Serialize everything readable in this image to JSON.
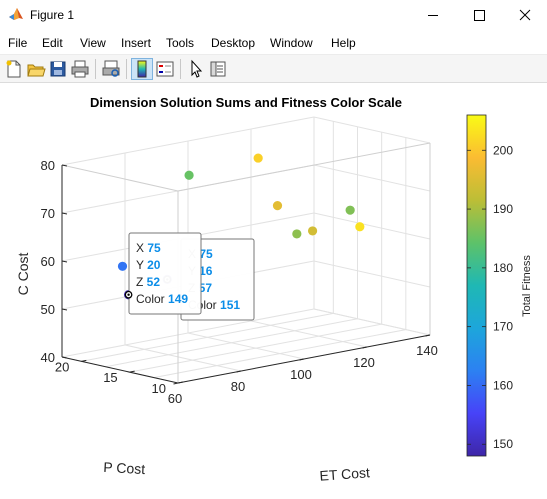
{
  "window": {
    "title": "Figure 1"
  },
  "menu": [
    "File",
    "Edit",
    "View",
    "Insert",
    "Tools",
    "Desktop",
    "Window",
    "Help"
  ],
  "toolbar": {
    "buttons": [
      "new-figure-icon",
      "open-file-icon",
      "save-icon",
      "print-icon",
      "print-preview-icon",
      "colorbar-icon",
      "legend-icon",
      "pointer-icon",
      "property-inspector-icon"
    ],
    "pressed": "colorbar-icon"
  },
  "chart_data": {
    "type": "scatter",
    "dimensions": 3,
    "title": "Dimension Solution Sums and Fitness Color Scale",
    "xlabel": "ET Cost",
    "ylabel": "P Cost",
    "zlabel": "C Cost",
    "xlim": [
      60,
      140
    ],
    "ylim": [
      10,
      22
    ],
    "zlim": [
      40,
      80
    ],
    "xticks": [
      60,
      80,
      100,
      120,
      140
    ],
    "yticks": [
      10,
      15,
      20
    ],
    "zticks": [
      40,
      50,
      60,
      70,
      80
    ],
    "grid": true,
    "colorbar": {
      "label": "Total Fitness",
      "range": [
        148,
        206
      ],
      "ticks": [
        150,
        160,
        170,
        180,
        190,
        200
      ],
      "colormap": "parula"
    },
    "points": [
      {
        "x": 75,
        "y": 20,
        "z": 52,
        "color": 149
      },
      {
        "x": 75,
        "y": 16,
        "z": 57,
        "color": 151
      },
      {
        "x": 70,
        "y": 19,
        "z": 59,
        "color": 161
      },
      {
        "x": 80,
        "y": 15,
        "z": 54,
        "color": 158
      },
      {
        "x": 85,
        "y": 17,
        "z": 77,
        "color": 185
      },
      {
        "x": 110,
        "y": 18,
        "z": 77,
        "color": 201
      },
      {
        "x": 110,
        "y": 16,
        "z": 68,
        "color": 196
      },
      {
        "x": 110,
        "y": 14,
        "z": 63,
        "color": 188
      },
      {
        "x": 115,
        "y": 14,
        "z": 63,
        "color": 194
      },
      {
        "x": 130,
        "y": 15,
        "z": 65,
        "color": 187
      },
      {
        "x": 130,
        "y": 14,
        "z": 62,
        "color": 203
      }
    ],
    "datatips": [
      {
        "rows": [
          {
            "label": "X",
            "value": "75"
          },
          {
            "label": "Y",
            "value": "16"
          },
          {
            "label": "Z",
            "value": "57"
          },
          {
            "label": "Color",
            "value": "151"
          }
        ]
      },
      {
        "rows": [
          {
            "label": "X",
            "value": "75"
          },
          {
            "label": "Y",
            "value": "20"
          },
          {
            "label": "Z",
            "value": "52"
          },
          {
            "label": "Color",
            "value": "149"
          }
        ]
      }
    ]
  }
}
